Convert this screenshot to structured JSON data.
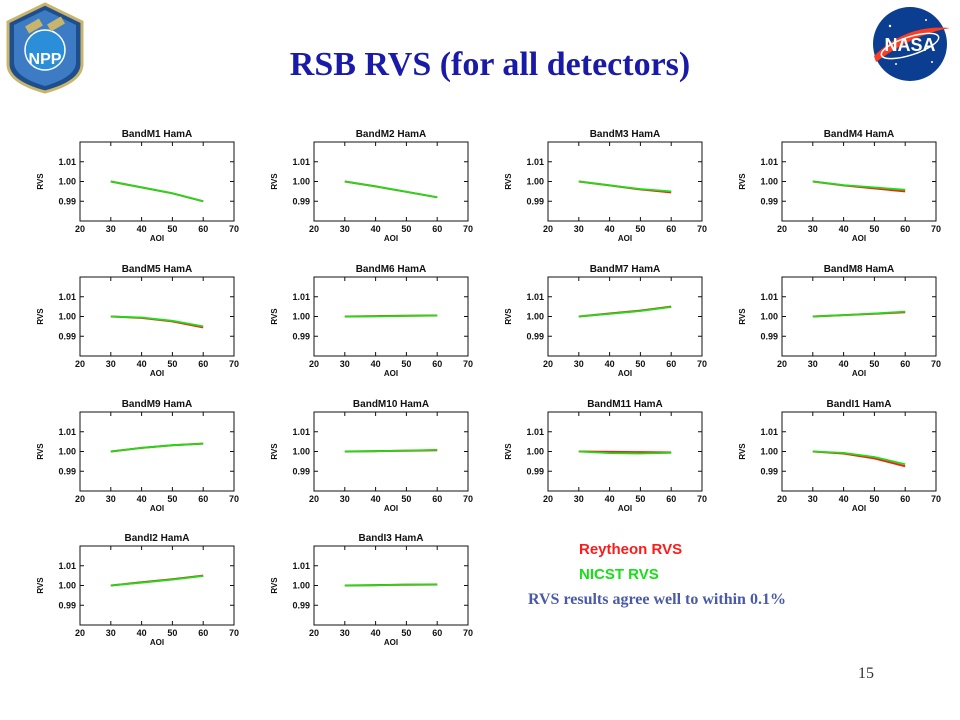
{
  "slide": {
    "title": "RSB RVS (for all detectors)",
    "note": "RVS results agree well to within 0.1%",
    "page_number": "15",
    "logo_left": {
      "icon": "npp-mission-logo",
      "text": "NPP"
    },
    "logo_right": {
      "icon": "nasa-meatball-logo",
      "text": "NASA"
    }
  },
  "legend": {
    "position": "below-right",
    "entries": [
      {
        "label": "Reytheon RVS",
        "color": "#ff1a1a"
      },
      {
        "label": "NICST RVS",
        "color": "#16e016"
      }
    ]
  },
  "chart_data": [
    {
      "type": "line",
      "title": "BandM1 HamA",
      "xlabel": "AOI",
      "ylabel": "RVS",
      "xlim": [
        20,
        70
      ],
      "ylim": [
        0.98,
        1.02
      ],
      "xticks": [
        "20",
        "30",
        "40",
        "50",
        "60",
        "70"
      ],
      "yticks": [
        "1.01",
        "1.00",
        "0.99"
      ],
      "x": [
        30,
        40,
        50,
        60
      ],
      "series": [
        {
          "name": "Reytheon RVS",
          "color": "#ff1a1a",
          "values": [
            1.0,
            0.997,
            0.994,
            0.99
          ]
        },
        {
          "name": "NICST RVS",
          "color": "#16e016",
          "values": [
            1.0,
            0.997,
            0.994,
            0.99
          ]
        }
      ]
    },
    {
      "type": "line",
      "title": "BandM2 HamA",
      "xlabel": "AOI",
      "ylabel": "RVS",
      "xlim": [
        20,
        70
      ],
      "ylim": [
        0.98,
        1.02
      ],
      "xticks": [
        "20",
        "30",
        "40",
        "50",
        "60",
        "70"
      ],
      "yticks": [
        "1.01",
        "1.00",
        "0.99"
      ],
      "x": [
        30,
        40,
        50,
        60
      ],
      "series": [
        {
          "name": "Reytheon RVS",
          "color": "#ff1a1a",
          "values": [
            1.0,
            0.9975,
            0.9948,
            0.992
          ]
        },
        {
          "name": "NICST RVS",
          "color": "#16e016",
          "values": [
            1.0,
            0.9975,
            0.9948,
            0.992
          ]
        }
      ]
    },
    {
      "type": "line",
      "title": "BandM3 HamA",
      "xlabel": "AOI",
      "ylabel": "RVS",
      "xlim": [
        20,
        70
      ],
      "ylim": [
        0.98,
        1.02
      ],
      "xticks": [
        "20",
        "30",
        "40",
        "50",
        "60",
        "70"
      ],
      "yticks": [
        "1.01",
        "1.00",
        "0.99"
      ],
      "x": [
        30,
        40,
        50,
        60
      ],
      "series": [
        {
          "name": "Reytheon RVS",
          "color": "#ff1a1a",
          "values": [
            1.0,
            0.998,
            0.996,
            0.9945
          ]
        },
        {
          "name": "NICST RVS",
          "color": "#16e016",
          "values": [
            1.0,
            0.998,
            0.9962,
            0.995
          ]
        }
      ]
    },
    {
      "type": "line",
      "title": "BandM4 HamA",
      "xlabel": "AOI",
      "ylabel": "RVS",
      "xlim": [
        20,
        70
      ],
      "ylim": [
        0.98,
        1.02
      ],
      "xticks": [
        "20",
        "30",
        "40",
        "50",
        "60",
        "70"
      ],
      "yticks": [
        "1.01",
        "1.00",
        "0.99"
      ],
      "x": [
        30,
        40,
        50,
        60
      ],
      "series": [
        {
          "name": "Reytheon RVS",
          "color": "#ff1a1a",
          "values": [
            1.0,
            0.998,
            0.9965,
            0.995
          ]
        },
        {
          "name": "NICST RVS",
          "color": "#16e016",
          "values": [
            1.0,
            0.9982,
            0.997,
            0.9958
          ]
        }
      ]
    },
    {
      "type": "line",
      "title": "BandM5 HamA",
      "xlabel": "AOI",
      "ylabel": "RVS",
      "xlim": [
        20,
        70
      ],
      "ylim": [
        0.98,
        1.02
      ],
      "xticks": [
        "20",
        "30",
        "40",
        "50",
        "60",
        "70"
      ],
      "yticks": [
        "1.01",
        "1.00",
        "0.99"
      ],
      "x": [
        30,
        40,
        50,
        60
      ],
      "series": [
        {
          "name": "Reytheon RVS",
          "color": "#ff1a1a",
          "values": [
            1.0,
            0.9993,
            0.9975,
            0.9945
          ]
        },
        {
          "name": "NICST RVS",
          "color": "#16e016",
          "values": [
            1.0,
            0.9995,
            0.9978,
            0.995
          ]
        }
      ]
    },
    {
      "type": "line",
      "title": "BandM6 HamA",
      "xlabel": "AOI",
      "ylabel": "RVS",
      "xlim": [
        20,
        70
      ],
      "ylim": [
        0.98,
        1.02
      ],
      "xticks": [
        "20",
        "30",
        "40",
        "50",
        "60",
        "70"
      ],
      "yticks": [
        "1.01",
        "1.00",
        "0.99"
      ],
      "x": [
        30,
        40,
        50,
        60
      ],
      "series": [
        {
          "name": "Reytheon RVS",
          "color": "#ff1a1a",
          "values": [
            1.0,
            1.0002,
            1.0004,
            1.0005
          ]
        },
        {
          "name": "NICST RVS",
          "color": "#16e016",
          "values": [
            1.0,
            1.0001,
            1.0003,
            1.0005
          ]
        }
      ]
    },
    {
      "type": "line",
      "title": "BandM7 HamA",
      "xlabel": "AOI",
      "ylabel": "RVS",
      "xlim": [
        20,
        70
      ],
      "ylim": [
        0.98,
        1.02
      ],
      "xticks": [
        "20",
        "30",
        "40",
        "50",
        "60",
        "70"
      ],
      "yticks": [
        "1.01",
        "1.00",
        "0.99"
      ],
      "x": [
        30,
        40,
        50,
        60
      ],
      "series": [
        {
          "name": "Reytheon RVS",
          "color": "#ff1a1a",
          "values": [
            1.0,
            1.0015,
            1.003,
            1.005
          ]
        },
        {
          "name": "NICST RVS",
          "color": "#16e016",
          "values": [
            1.0,
            1.0013,
            1.0028,
            1.0048
          ]
        }
      ]
    },
    {
      "type": "line",
      "title": "BandM8 HamA",
      "xlabel": "AOI",
      "ylabel": "RVS",
      "xlim": [
        20,
        70
      ],
      "ylim": [
        0.98,
        1.02
      ],
      "xticks": [
        "20",
        "30",
        "40",
        "50",
        "60",
        "70"
      ],
      "yticks": [
        "1.01",
        "1.00",
        "0.99"
      ],
      "x": [
        30,
        40,
        50,
        60
      ],
      "series": [
        {
          "name": "Reytheon RVS",
          "color": "#ff1a1a",
          "values": [
            1.0,
            1.0007,
            1.0014,
            1.0022
          ]
        },
        {
          "name": "NICST RVS",
          "color": "#16e016",
          "values": [
            1.0,
            1.0007,
            1.0015,
            1.0025
          ]
        }
      ]
    },
    {
      "type": "line",
      "title": "BandM9 HamA",
      "xlabel": "AOI",
      "ylabel": "RVS",
      "xlim": [
        20,
        70
      ],
      "ylim": [
        0.98,
        1.02
      ],
      "xticks": [
        "20",
        "30",
        "40",
        "50",
        "60",
        "70"
      ],
      "yticks": [
        "1.01",
        "1.00",
        "0.99"
      ],
      "x": [
        30,
        40,
        50,
        60
      ],
      "series": [
        {
          "name": "Reytheon RVS",
          "color": "#ff1a1a",
          "values": [
            1.0,
            1.0018,
            1.0032,
            1.004
          ]
        },
        {
          "name": "NICST RVS",
          "color": "#16e016",
          "values": [
            1.0,
            1.0018,
            1.0032,
            1.004
          ]
        }
      ]
    },
    {
      "type": "line",
      "title": "BandM10 HamA",
      "xlabel": "AOI",
      "ylabel": "RVS",
      "xlim": [
        20,
        70
      ],
      "ylim": [
        0.98,
        1.02
      ],
      "xticks": [
        "20",
        "30",
        "40",
        "50",
        "60",
        "70"
      ],
      "yticks": [
        "1.01",
        "1.00",
        "0.99"
      ],
      "x": [
        30,
        40,
        50,
        60
      ],
      "series": [
        {
          "name": "Reytheon RVS",
          "color": "#ff1a1a",
          "values": [
            1.0,
            1.0002,
            1.0004,
            1.0006
          ]
        },
        {
          "name": "NICST RVS",
          "color": "#16e016",
          "values": [
            1.0,
            1.0001,
            1.0005,
            1.0008
          ]
        }
      ]
    },
    {
      "type": "line",
      "title": "BandM11 HamA",
      "xlabel": "AOI",
      "ylabel": "RVS",
      "xlim": [
        20,
        70
      ],
      "ylim": [
        0.98,
        1.02
      ],
      "xticks": [
        "20",
        "30",
        "40",
        "50",
        "60",
        "70"
      ],
      "yticks": [
        "1.01",
        "1.00",
        "0.99"
      ],
      "x": [
        30,
        40,
        50,
        60
      ],
      "series": [
        {
          "name": "Reytheon RVS",
          "color": "#ff1a1a",
          "values": [
            1.0,
            0.9998,
            0.9997,
            0.9995
          ]
        },
        {
          "name": "NICST RVS",
          "color": "#16e016",
          "values": [
            1.0,
            0.9992,
            0.999,
            0.9993
          ]
        }
      ]
    },
    {
      "type": "line",
      "title": "BandI1 HamA",
      "xlabel": "AOI",
      "ylabel": "RVS",
      "xlim": [
        20,
        70
      ],
      "ylim": [
        0.98,
        1.02
      ],
      "xticks": [
        "20",
        "30",
        "40",
        "50",
        "60",
        "70"
      ],
      "yticks": [
        "1.01",
        "1.00",
        "0.99"
      ],
      "x": [
        30,
        40,
        50,
        60
      ],
      "series": [
        {
          "name": "Reytheon RVS",
          "color": "#ff1a1a",
          "values": [
            1.0,
            0.999,
            0.9965,
            0.9925
          ]
        },
        {
          "name": "NICST RVS",
          "color": "#16e016",
          "values": [
            1.0,
            0.9993,
            0.9972,
            0.9935
          ]
        }
      ]
    },
    {
      "type": "line",
      "title": "BandI2 HamA",
      "xlabel": "AOI",
      "ylabel": "RVS",
      "xlim": [
        20,
        70
      ],
      "ylim": [
        0.98,
        1.02
      ],
      "xticks": [
        "20",
        "30",
        "40",
        "50",
        "60",
        "70"
      ],
      "yticks": [
        "1.01",
        "1.00",
        "0.99"
      ],
      "x": [
        30,
        40,
        50,
        60
      ],
      "series": [
        {
          "name": "Reytheon RVS",
          "color": "#ff1a1a",
          "values": [
            1.0,
            1.0016,
            1.0032,
            1.005
          ]
        },
        {
          "name": "NICST RVS",
          "color": "#16e016",
          "values": [
            1.0,
            1.0014,
            1.003,
            1.0048
          ]
        }
      ]
    },
    {
      "type": "line",
      "title": "BandI3 HamA",
      "xlabel": "AOI",
      "ylabel": "RVS",
      "xlim": [
        20,
        70
      ],
      "ylim": [
        0.98,
        1.02
      ],
      "xticks": [
        "20",
        "30",
        "40",
        "50",
        "60",
        "70"
      ],
      "yticks": [
        "1.01",
        "1.00",
        "0.99"
      ],
      "x": [
        30,
        40,
        50,
        60
      ],
      "series": [
        {
          "name": "Reytheon RVS",
          "color": "#ff1a1a",
          "values": [
            1.0,
            1.0002,
            1.0004,
            1.0005
          ]
        },
        {
          "name": "NICST RVS",
          "color": "#16e016",
          "values": [
            1.0,
            1.0001,
            1.0005,
            1.0006
          ]
        }
      ]
    }
  ]
}
